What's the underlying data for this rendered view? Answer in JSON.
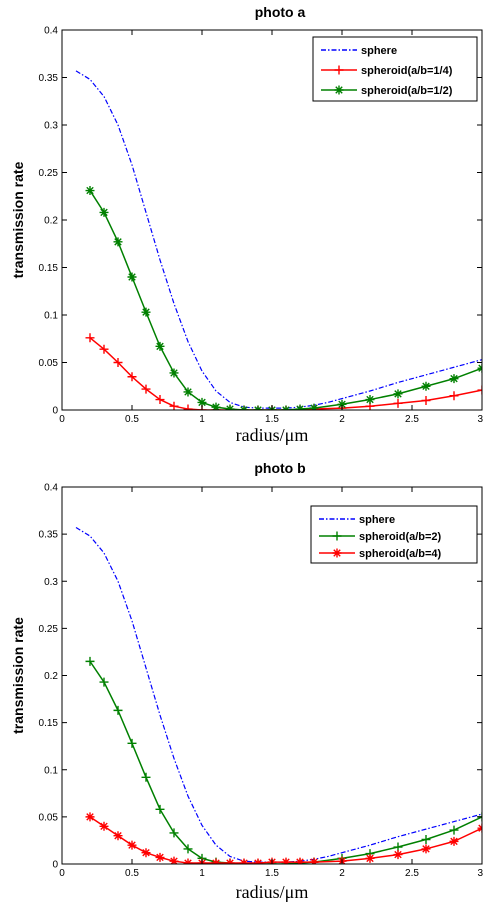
{
  "chart_data": [
    {
      "type": "line",
      "title": "photo a",
      "xlabel": "radius/μm",
      "ylabel": "transmission rate",
      "xlim": [
        0,
        3
      ],
      "ylim": [
        0,
        0.4
      ],
      "xticks": [
        0,
        0.5,
        1,
        1.5,
        2,
        2.5,
        3
      ],
      "xtick_labels": [
        "0",
        "0.5",
        "1",
        "1.5",
        "2",
        "2.5",
        "3"
      ],
      "yticks": [
        0,
        0.05,
        0.1,
        0.15,
        0.2,
        0.25,
        0.3,
        0.35,
        0.4
      ],
      "ytick_labels": [
        "0",
        "0.05",
        "0.1",
        "0.15",
        "0.2",
        "0.25",
        "0.3",
        "0.35",
        "0.4"
      ],
      "grid": false,
      "legend_position": "top-right",
      "series": [
        {
          "name": "sphere",
          "color": "#0000ff",
          "style": "dashdot",
          "marker": "none",
          "x": [
            0.1,
            0.2,
            0.3,
            0.4,
            0.5,
            0.6,
            0.7,
            0.8,
            0.9,
            1.0,
            1.1,
            1.2,
            1.3,
            1.4,
            1.5,
            1.6,
            1.7,
            1.8,
            1.9,
            2.0,
            2.2,
            2.4,
            2.6,
            2.8,
            3.0
          ],
          "y": [
            0.357,
            0.348,
            0.33,
            0.3,
            0.258,
            0.208,
            0.158,
            0.112,
            0.072,
            0.041,
            0.02,
            0.008,
            0.003,
            0.002,
            0.002,
            0.002,
            0.003,
            0.005,
            0.008,
            0.012,
            0.02,
            0.029,
            0.037,
            0.045,
            0.053
          ]
        },
        {
          "name": "spheroid(a/b=1/4)",
          "color": "#ff0000",
          "style": "solid",
          "marker": "plus",
          "x": [
            0.2,
            0.3,
            0.4,
            0.5,
            0.6,
            0.7,
            0.8,
            0.9,
            1.0,
            1.1,
            1.2,
            1.3,
            1.4,
            1.5,
            1.6,
            1.7,
            1.8,
            2.0,
            2.2,
            2.4,
            2.6,
            2.8,
            3.0
          ],
          "y": [
            0.076,
            0.064,
            0.05,
            0.035,
            0.022,
            0.011,
            0.004,
            0.001,
            0.0,
            0.0,
            0.0,
            0.0,
            0.0,
            0.0,
            0.0,
            0.0,
            0.001,
            0.002,
            0.004,
            0.007,
            0.01,
            0.015,
            0.021
          ]
        },
        {
          "name": "spheroid(a/b=1/2)",
          "color": "#008000",
          "style": "solid",
          "marker": "asterisk",
          "x": [
            0.2,
            0.3,
            0.4,
            0.5,
            0.6,
            0.7,
            0.8,
            0.9,
            1.0,
            1.1,
            1.2,
            1.3,
            1.4,
            1.5,
            1.6,
            1.7,
            1.8,
            2.0,
            2.2,
            2.4,
            2.6,
            2.8,
            3.0
          ],
          "y": [
            0.231,
            0.208,
            0.177,
            0.14,
            0.103,
            0.067,
            0.039,
            0.019,
            0.008,
            0.003,
            0.001,
            0.0,
            0.0,
            0.0,
            0.0,
            0.001,
            0.002,
            0.006,
            0.011,
            0.017,
            0.025,
            0.033,
            0.044
          ]
        }
      ]
    },
    {
      "type": "line",
      "title": "photo b",
      "xlabel": "radius/μm",
      "ylabel": "transmission rate",
      "xlim": [
        0,
        3
      ],
      "ylim": [
        0,
        0.4
      ],
      "xticks": [
        0,
        0.5,
        1,
        1.5,
        2,
        2.5,
        3
      ],
      "xtick_labels": [
        "0",
        "0.5",
        "1",
        "1.5",
        "2",
        "2.5",
        "3"
      ],
      "yticks": [
        0,
        0.05,
        0.1,
        0.15,
        0.2,
        0.25,
        0.3,
        0.35,
        0.4
      ],
      "ytick_labels": [
        "0",
        "0.05",
        "0.1",
        "0.15",
        "0.2",
        "0.25",
        "0.3",
        "0.35",
        "0.4"
      ],
      "grid": false,
      "legend_position": "top-right",
      "series": [
        {
          "name": "sphere",
          "color": "#0000ff",
          "style": "dashdot",
          "marker": "none",
          "x": [
            0.1,
            0.2,
            0.3,
            0.4,
            0.5,
            0.6,
            0.7,
            0.8,
            0.9,
            1.0,
            1.1,
            1.2,
            1.3,
            1.4,
            1.5,
            1.6,
            1.7,
            1.8,
            1.9,
            2.0,
            2.2,
            2.4,
            2.6,
            2.8,
            3.0
          ],
          "y": [
            0.357,
            0.348,
            0.33,
            0.3,
            0.258,
            0.208,
            0.158,
            0.112,
            0.072,
            0.041,
            0.02,
            0.008,
            0.003,
            0.002,
            0.002,
            0.002,
            0.003,
            0.005,
            0.008,
            0.012,
            0.02,
            0.029,
            0.037,
            0.045,
            0.053
          ]
        },
        {
          "name": "spheroid(a/b=2)",
          "color": "#008000",
          "style": "solid",
          "marker": "plus",
          "x": [
            0.2,
            0.3,
            0.4,
            0.5,
            0.6,
            0.7,
            0.8,
            0.9,
            1.0,
            1.1,
            1.2,
            1.3,
            1.4,
            1.5,
            1.6,
            1.7,
            1.8,
            2.0,
            2.2,
            2.4,
            2.6,
            2.8,
            3.0
          ],
          "y": [
            0.215,
            0.193,
            0.163,
            0.128,
            0.092,
            0.058,
            0.033,
            0.016,
            0.006,
            0.002,
            0.001,
            0.0,
            0.0,
            0.0,
            0.0,
            0.001,
            0.002,
            0.006,
            0.011,
            0.018,
            0.026,
            0.036,
            0.05
          ]
        },
        {
          "name": "spheroid(a/b=4)",
          "color": "#ff0000",
          "style": "solid",
          "marker": "asterisk",
          "x": [
            0.2,
            0.3,
            0.4,
            0.5,
            0.6,
            0.7,
            0.8,
            0.9,
            1.0,
            1.1,
            1.2,
            1.3,
            1.4,
            1.5,
            1.6,
            1.7,
            1.8,
            2.0,
            2.2,
            2.4,
            2.6,
            2.8,
            3.0
          ],
          "y": [
            0.05,
            0.04,
            0.03,
            0.02,
            0.012,
            0.007,
            0.003,
            0.001,
            0.001,
            0.001,
            0.001,
            0.001,
            0.001,
            0.002,
            0.002,
            0.002,
            0.002,
            0.003,
            0.006,
            0.01,
            0.016,
            0.024,
            0.038
          ]
        }
      ]
    }
  ]
}
